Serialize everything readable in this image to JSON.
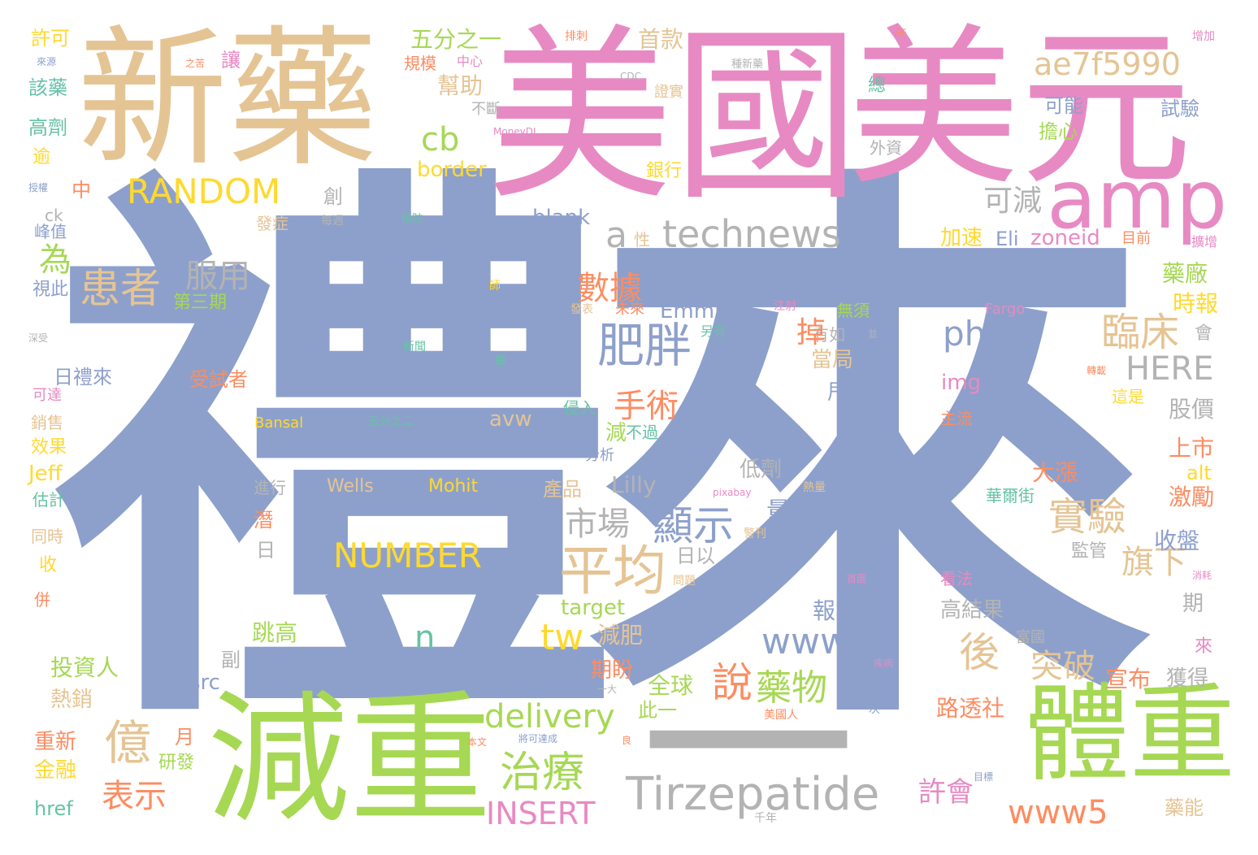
{
  "palette": {
    "blue": "#8da0cb",
    "tan": "#e5c494",
    "pink": "#e78ac3",
    "green": "#a6d854",
    "gray": "#b3b3b3",
    "orange": "#fc8d62",
    "teal": "#66c2a5",
    "yellow": "#ffd92f"
  },
  "words": {
    "w001": "禮來",
    "w002": "美國",
    "w003": "新藥",
    "w004": "美元",
    "w005": "減重",
    "w006": "體重",
    "w007": "一",
    "w008": "amp",
    "w009": "Tirzepatide",
    "w010": "technews",
    "w011": "ae7f5990",
    "w012": "RANDOM",
    "w013": "NUMBER",
    "w014": "delivery",
    "w015": "肥胖",
    "w016": "平均",
    "w017": "患者",
    "w018": "治療",
    "w019": "億",
    "w020": "表示",
    "w021": "INSERT",
    "w022": "www5",
    "w023": "www",
    "w024": "php",
    "w025": "臨床",
    "w026": "實驗",
    "w027": "HERE",
    "w028": "說",
    "w029": "藥物",
    "w030": "顯示",
    "w031": "市場",
    "w032": "手術",
    "w033": "數據",
    "w034": "服用",
    "w035": "可減",
    "w036": "cb",
    "w037": "a",
    "w038": "tw",
    "w039": "n",
    "w040": "後",
    "w041": "突破",
    "w042": "許會",
    "w043": "旗下",
    "w044": "為",
    "w045": "五分之一",
    "w046": "幫助",
    "w047": "首款",
    "w048": "border",
    "w049": "blank",
    "w050": "zoneid",
    "w051": "Eli",
    "w052": "加速",
    "w053": "Emmick",
    "w054": "Lilly",
    "w055": "avw",
    "w056": "target",
    "w057": "減肥",
    "w058": "Wells",
    "w059": "Mohit",
    "w060": "Bansal",
    "w061": "img",
    "w062": "src",
    "w063": "href",
    "w064": "alt",
    "w065": "藥廠",
    "w066": "時報",
    "w067": "上市",
    "w068": "激勵",
    "w069": "收盤",
    "w070": "股價",
    "w071": "大漲",
    "w072": "宣布",
    "w073": "獲得",
    "w074": "路透社",
    "w075": "期盼",
    "w076": "全球",
    "w077": "此一",
    "w078": "報導",
    "w079": "高結果",
    "w080": "跳高",
    "w081": "投資人",
    "w082": "熱銷",
    "w083": "重新",
    "w084": "金融",
    "w085": "研發",
    "w086": "月",
    "w087": "受試者",
    "w088": "日禮來",
    "w089": "第三期",
    "w090": "許可",
    "w091": "該藥",
    "w092": "高劑",
    "w093": "逾",
    "w094": "中",
    "w095": "讓",
    "w096": "創",
    "w097": "可能",
    "w098": "試驗",
    "w099": "擔心",
    "w100": "銀行",
    "w101": "總",
    "w102": "外資",
    "w103": "規模",
    "w104": "中心",
    "w105": "不斷",
    "w106": "證實",
    "w107": "排刺",
    "w108": "年",
    "w109": "增加",
    "w110": "種新藥",
    "w111": "CDC",
    "w112": "之苦",
    "w113": "來源",
    "w114": "MoneyDJ",
    "w115": "授權",
    "w116": "峰值",
    "w117": "視此",
    "w118": "深受",
    "w119": "可達",
    "w120": "銷售",
    "w121": "效果",
    "w122": "Jeff",
    "w123": "估計",
    "w124": "同時",
    "w125": "收",
    "w126": "併",
    "w127": "ck",
    "w128": "發症",
    "w129": "每週",
    "w130": "預防",
    "w131": "性",
    "w132": "目前",
    "w133": "擴增",
    "w134": "師",
    "w135": "未來",
    "w136": "發表",
    "w137": "注射",
    "w138": "無須",
    "w139": "另有",
    "w140": "有如",
    "w141": "並",
    "w142": "新聞",
    "w143": "慈",
    "w144": "掉",
    "w145": "當局",
    "w146": "甩掉",
    "w147": "侵入",
    "w148": "減",
    "w149": "不過",
    "w150": "方式",
    "w151": "分析",
    "w152": "低劑",
    "w153": "量",
    "w154": "日以",
    "w155": "日",
    "w156": "進行",
    "w157": "潛",
    "w158": "副",
    "w159": "間",
    "w160": "五分之二",
    "w161": "產品",
    "w162": "熱量",
    "w163": "pixabay",
    "w164": "警刊",
    "w165": "華爾街",
    "w166": "監管",
    "w167": "首圖",
    "w168": "問題",
    "w169": "消耗",
    "w170": "期",
    "w171": "富國",
    "w172": "疾病",
    "w173": "一大",
    "w174": "一次",
    "w175": "美國人",
    "w176": "本文",
    "w177": "將可達成",
    "w178": "良",
    "w179": "目標",
    "w180": "千年",
    "w181": "藥能",
    "w182": "轉載",
    "w183": "看法",
    "w184": "主流",
    "w185": "這是",
    "w186": "會",
    "w187": "Fargo",
    "w188": "來"
  }
}
